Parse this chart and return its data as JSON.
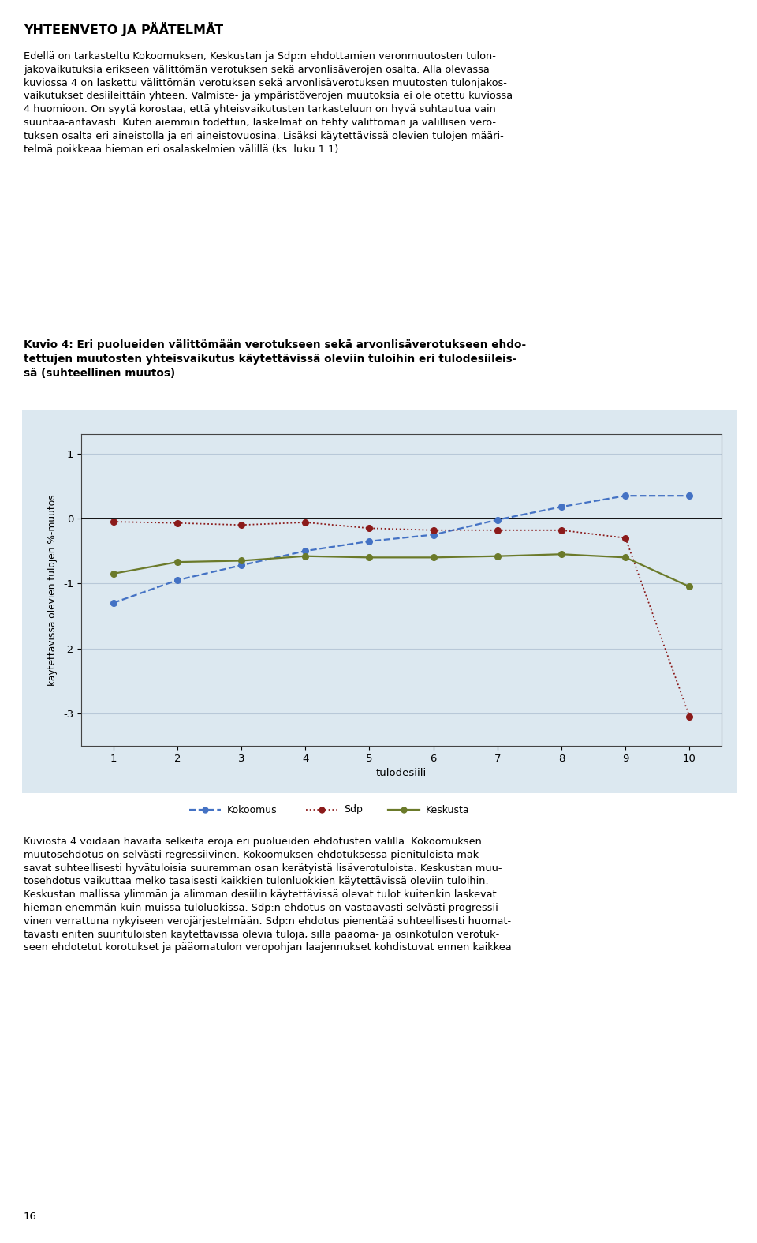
{
  "x": [
    1,
    2,
    3,
    4,
    5,
    6,
    7,
    8,
    9,
    10
  ],
  "kokoomus": [
    -1.3,
    -0.95,
    -0.72,
    -0.5,
    -0.35,
    -0.25,
    -0.02,
    0.18,
    0.35,
    0.35
  ],
  "sdp": [
    -0.05,
    -0.07,
    -0.1,
    -0.06,
    -0.15,
    -0.18,
    -0.18,
    -0.18,
    -0.3,
    -3.05
  ],
  "keskusta": [
    -0.85,
    -0.67,
    -0.65,
    -0.58,
    -0.6,
    -0.6,
    -0.58,
    -0.55,
    -0.6,
    -1.05
  ],
  "kokoomus_color": "#4472C4",
  "sdp_color": "#8B1A1A",
  "keskusta_color": "#6B7A2A",
  "chart_bg_color": "#DCE8F0",
  "ylabel": "käytettävissä olevien tulojen %-muutos",
  "xlabel": "tulodesiili",
  "ylim": [
    -3.5,
    1.3
  ],
  "yticks": [
    -3,
    -2,
    -1,
    0,
    1
  ],
  "xticks": [
    1,
    2,
    3,
    4,
    5,
    6,
    7,
    8,
    9,
    10
  ],
  "legend_kokoomus": "Kokoomus",
  "legend_sdp": "Sdp",
  "legend_keskusta": "Keskusta",
  "heading": "YHTEENVETO JA PÄÄTELMÄT",
  "page_number": "16",
  "fig_title": "Kuvio 4: Eri puolueiden välittömään verotukseen sekä arvonlisäverotukseen ehdo-\ntettujen muutosten yhteisvaikutus käytettävissä oleviin tuloihin eri tulodesiileis-\nsä (suhteellinen muutos)",
  "top_text_normal1": "Edellä on tarkasteltu Kokoomuksen, Keskustan ja Sdp:n ehdottamien veronmuutosten tulon-\njakovaikutuksia erikseen välittömän verotuksen sekä arvonlisäverojen osalta. Alla olevassa\nkuviossa 4 on laskettu välittömän verotuksen sekä arvonlisäverotuksen muutosten tulonjakos-\nvaikutukset desiileittäin yhteen. ",
  "top_text_italic": "Valmiste- ja ympäristöverojen muutoksia ei ole otettu kuviossa\n4 huomioon.",
  "top_text_normal2": " On syytä korostaa, että yhteisvaikutusten tarkasteluun on hyvä suhtautua vain\nsuuntaa-antavasti. Kuten aiemmin todettiin, laskelmat on tehty välittömän ja välillisen vero-\ntuksen osalta eri aineistolla ja eri aineistovuosina. Lisäksi käytettävissä olevien tulojen määri-\ntelmä poikkeaa hieman eri osalaskelmien välillä (ks. luku 1.1).",
  "bottom_text": "Kuviosta 4 voidaan havaita selkeitä eroja eri puolueiden ehdotusten välillä. Kokoomuksen\nmuutosehdotus on selvästi regressiivinen. Kokoomuksen ehdotuksessa pienituloista mak-\nsavat suhteellisesti hyvätuloisia suuremman osan kerätyistä lisäverotuloista. Keskustan muu-\ntosehdotus vaikuttaa melko tasaisesti kaikkien tulonluokkien käytettävissä oleviin tuloihin.\nKeskustan mallissa ylimmän ja alimman desiilin käytettävissä olevat tulot kuitenkin laskevat\nhieman enemmän kuin muissa tuloluokissa. Sdp:n ehdotus on vastaavasti selvästi progressii-\nvinen verrattuna nykyiseen verojärjestelmään. Sdp:n ehdotus pienentää suhteellisesti huomat-\ntavasti eniten suurituloisten käytettävissä olevia tuloja, sillä pääoma- ja osinkotulon verotuk-\nseen ehdotetut korotukset ja pääomatulon veropohjan laajennukset kohdistuvat ennen kaikkea"
}
